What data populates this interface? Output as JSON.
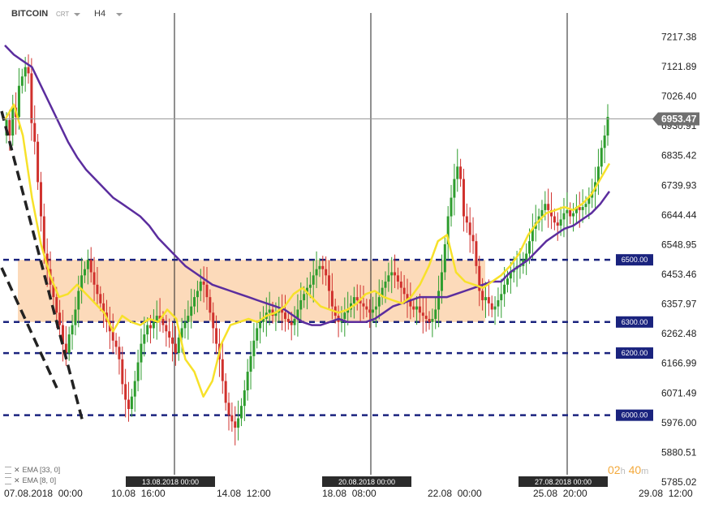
{
  "toolbar": {
    "symbol": "BITCOIN",
    "type": "CRT",
    "timeframe": "H4"
  },
  "price_axis": {
    "ticks": [
      "7217.38",
      "7121.89",
      "7026.40",
      "6930.91",
      "6835.42",
      "6739.93",
      "6644.44",
      "6548.95",
      "6453.46",
      "6357.97",
      "6262.48",
      "6166.99",
      "6071.49",
      "5976.00",
      "5880.51",
      "5785.02"
    ],
    "current_price": "6953.47"
  },
  "time_axis": {
    "ticks": [
      "07.08.2018  00:00",
      "10.08  16:00",
      "14.08  12:00",
      "18.08  08:00",
      "22.08  00:00",
      "25.08  20:00",
      "29.08  12:00"
    ],
    "markers": [
      "13.08.2018 00:00",
      "20.08.2018 00:00",
      "27.08.2018 00:00"
    ]
  },
  "levels": [
    {
      "label": "6500.00",
      "price": 6500
    },
    {
      "label": "6300.00",
      "price": 6300
    },
    {
      "label": "6200.00",
      "price": 6200
    },
    {
      "label": "6000.00",
      "price": 6000
    }
  ],
  "zone": {
    "from_price": 6300,
    "to_price": 6500
  },
  "indicators": [
    {
      "label": "EMA [33, 0]",
      "color": "#5b2d9e"
    },
    {
      "label": "EMA [8, 0]",
      "color": "#f7e12a"
    }
  ],
  "countdown": {
    "hours": "02",
    "hours_unit": "h",
    "minutes": "40",
    "minutes_unit": "m"
  },
  "colors": {
    "up": "#2e9d2e",
    "down": "#d0312d",
    "level": "#1a237e",
    "zone": "#fbd3ae"
  },
  "chart_data": {
    "type": "candlestick",
    "title": "BITCOIN",
    "timeframe": "H4",
    "ylim": [
      5785.02,
      7264
    ],
    "hlines": [
      6500,
      6300,
      6200,
      6000
    ],
    "closes": [
      6950,
      6900,
      6990,
      6960,
      7060,
      7090,
      7120,
      7100,
      6940,
      6880,
      6750,
      6640,
      6520,
      6470,
      6420,
      6380,
      6330,
      6290,
      6230,
      6200,
      6260,
      6290,
      6340,
      6400,
      6450,
      6470,
      6500,
      6460,
      6420,
      6390,
      6360,
      6330,
      6300,
      6270,
      6240,
      6220,
      6180,
      6100,
      6050,
      6020,
      6060,
      6110,
      6170,
      6230,
      6260,
      6290,
      6280,
      6300,
      6320,
      6310,
      6290,
      6270,
      6250,
      6230,
      6200,
      6250,
      6280,
      6300,
      6320,
      6350,
      6380,
      6400,
      6430,
      6420,
      6380,
      6330,
      6280,
      6230,
      6180,
      6110,
      6040,
      6000,
      5980,
      5960,
      5990,
      6030,
      6080,
      6140,
      6190,
      6240,
      6280,
      6300,
      6310,
      6330,
      6340,
      6320,
      6330,
      6340,
      6330,
      6310,
      6300,
      6290,
      6310,
      6340,
      6370,
      6390,
      6410,
      6420,
      6450,
      6470,
      6480,
      6470,
      6450,
      6400,
      6350,
      6320,
      6300,
      6310,
      6330,
      6340,
      6360,
      6380,
      6370,
      6360,
      6350,
      6340,
      6330,
      6340,
      6350,
      6380,
      6410,
      6430,
      6450,
      6460,
      6450,
      6430,
      6410,
      6390,
      6370,
      6350,
      6340,
      6350,
      6330,
      6320,
      6310,
      6300,
      6310,
      6340,
      6400,
      6460,
      6550,
      6640,
      6700,
      6760,
      6800,
      6760,
      6640,
      6620,
      6580,
      6560,
      6480,
      6400,
      6370,
      6380,
      6360,
      6340,
      6350,
      6370,
      6390,
      6420,
      6440,
      6460,
      6470,
      6480,
      6480,
      6500,
      6520,
      6560,
      6600,
      6620,
      6640,
      6660,
      6680,
      6660,
      6640,
      6620,
      6610,
      6630,
      6650,
      6660,
      6640,
      6650,
      6670,
      6660,
      6670,
      6680,
      6700,
      6720,
      6750,
      6800,
      6860,
      6900,
      6960
    ],
    "ema_33": [
      7190,
      7160,
      7140,
      7120,
      7060,
      7000,
      6940,
      6880,
      6830,
      6790,
      6760,
      6730,
      6700,
      6680,
      6660,
      6640,
      6610,
      6570,
      6540,
      6510,
      6480,
      6460,
      6440,
      6420,
      6410,
      6400,
      6390,
      6380,
      6370,
      6360,
      6350,
      6340,
      6320,
      6300,
      6290,
      6290,
      6300,
      6310,
      6300,
      6300,
      6300,
      6310,
      6330,
      6350,
      6360,
      6370,
      6380,
      6380,
      6380,
      6380,
      6390,
      6400,
      6410,
      6420,
      6430,
      6430,
      6460,
      6480,
      6500,
      6530,
      6560,
      6580,
      6600,
      6610,
      6630,
      6650,
      6680,
      6720
    ],
    "ema_8": [
      6950,
      7000,
      6900,
      6700,
      6550,
      6450,
      6380,
      6390,
      6420,
      6390,
      6360,
      6330,
      6270,
      6320,
      6300,
      6290,
      6310,
      6300,
      6340,
      6310,
      6180,
      6140,
      6060,
      6110,
      6230,
      6290,
      6300,
      6310,
      6300,
      6320,
      6330,
      6350,
      6390,
      6410,
      6380,
      6350,
      6340,
      6330,
      6340,
      6360,
      6390,
      6400,
      6380,
      6370,
      6360,
      6380,
      6420,
      6480,
      6560,
      6580,
      6460,
      6430,
      6420,
      6410,
      6430,
      6450,
      6480,
      6520,
      6580,
      6620,
      6650,
      6660,
      6670,
      6660,
      6680,
      6710,
      6760,
      6810
    ]
  }
}
